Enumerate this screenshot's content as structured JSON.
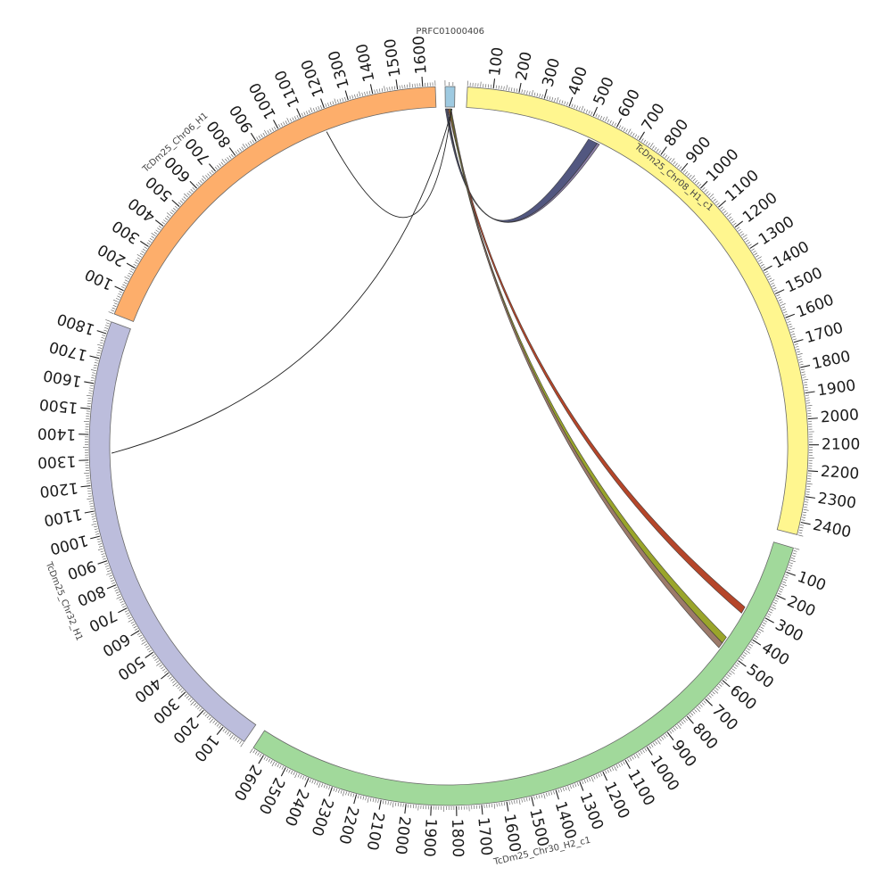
{
  "chromosomes": [
    {
      "id": "prfc",
      "label": "PRFC01000406",
      "length": 25,
      "color": "#9ecae1",
      "ticks": []
    },
    {
      "id": "chr08",
      "label": "TcDm25_Chr08_H1_c1",
      "length": 2450,
      "color": "#fff68f",
      "ticks": [
        "100",
        "200",
        "300",
        "400",
        "500",
        "600",
        "700",
        "800",
        "900",
        "1000",
        "1100",
        "1200",
        "1300",
        "1400",
        "1500",
        "1600",
        "1700",
        "1800",
        "1900",
        "2000",
        "2100",
        "2200",
        "2300",
        "2400"
      ]
    },
    {
      "id": "chr30",
      "label": "TcDm25_Chr30_H2_c1",
      "length": 2650,
      "color": "#a1d99b",
      "ticks": [
        "100",
        "200",
        "300",
        "400",
        "500",
        "600",
        "700",
        "800",
        "900",
        "1000",
        "1100",
        "1200",
        "1300",
        "1400",
        "1500",
        "1600",
        "1700",
        "1800",
        "1900",
        "2000",
        "2100",
        "2200",
        "2300",
        "2400",
        "2500",
        "2600"
      ]
    },
    {
      "id": "chr32",
      "label": "TcDm25_Chr32_H1",
      "length": 1850,
      "color": "#bcbddc",
      "ticks": [
        "100",
        "200",
        "300",
        "400",
        "500",
        "600",
        "700",
        "800",
        "900",
        "1000",
        "1100",
        "1200",
        "1300",
        "1400",
        "1500",
        "1600",
        "1700",
        "1800"
      ]
    },
    {
      "id": "chr06",
      "label": "TcDm25_Chr06_H1",
      "length": 1650,
      "color": "#fdae6b",
      "ticks": [
        "100",
        "200",
        "300",
        "400",
        "500",
        "600",
        "700",
        "800",
        "900",
        "1000",
        "1100",
        "1200",
        "1300",
        "1400",
        "1500",
        "1600"
      ]
    }
  ],
  "links": [
    {
      "from": "prfc",
      "from_start": 0,
      "from_end": 7,
      "to": "chr08",
      "to_start": 520,
      "to_end": 560,
      "color": "#525780"
    },
    {
      "from": "prfc",
      "from_start": 3,
      "from_end": 5,
      "to": "chr08",
      "to_start": 560,
      "to_end": 570,
      "color": "#8b7fa8"
    },
    {
      "from": "prfc",
      "from_start": 8,
      "from_end": 11,
      "to": "chr30",
      "to_start": 300,
      "to_end": 330,
      "color": "#b5462a"
    },
    {
      "from": "prfc",
      "from_start": 11,
      "from_end": 14,
      "to": "chr30",
      "to_start": 450,
      "to_end": 480,
      "color": "#9aa52b"
    },
    {
      "from": "prfc",
      "from_start": 14,
      "from_end": 16,
      "to": "chr30",
      "to_start": 480,
      "to_end": 505,
      "color": "#9c7a6a"
    },
    {
      "from": "prfc",
      "from_start": 17,
      "from_end": 17.3,
      "to": "chr06",
      "to_start": 1175,
      "to_end": 1177,
      "color": "#222222"
    },
    {
      "from": "prfc",
      "from_start": 18,
      "from_end": 18.3,
      "to": "chr32",
      "to_start": 1325,
      "to_end": 1327,
      "color": "#222222"
    }
  ]
}
